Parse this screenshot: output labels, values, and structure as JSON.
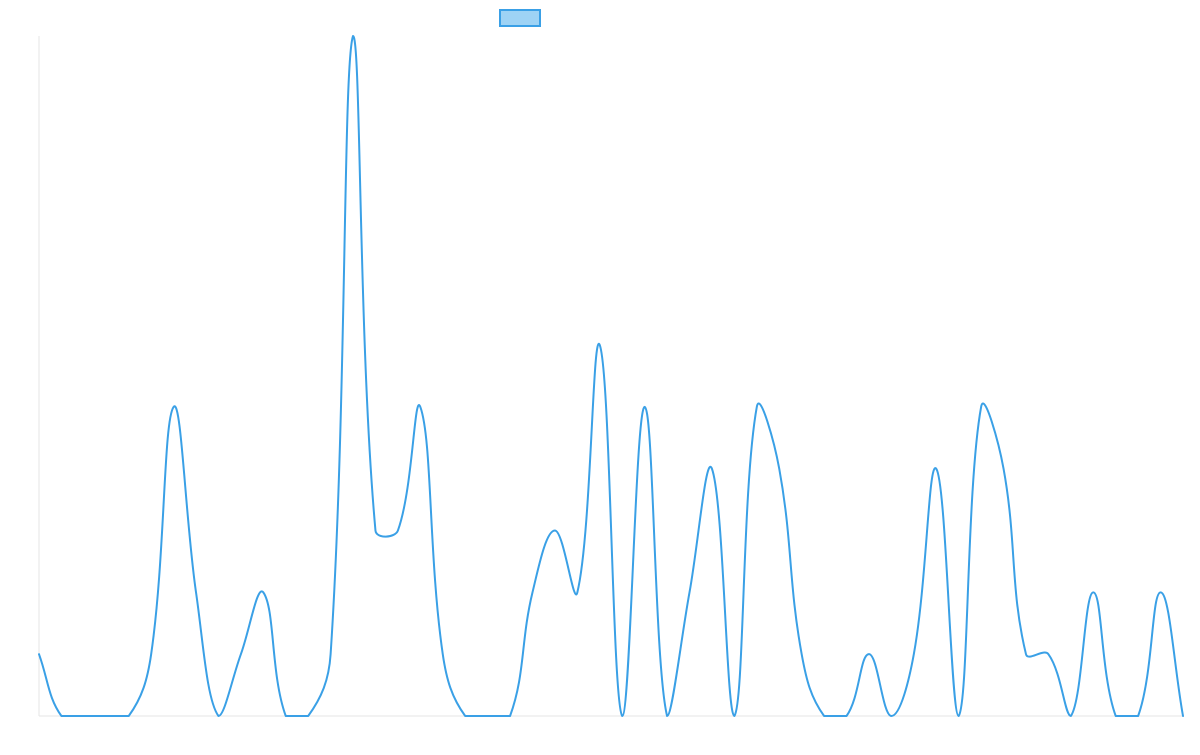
{
  "chart_data": {
    "type": "line",
    "title": "",
    "xlabel": "",
    "ylabel": "",
    "legend": {
      "position": "top-center",
      "swatch_fill": "#9ed3f5",
      "swatch_stroke": "#3aa0e6"
    },
    "axes_visible": false,
    "grid": false,
    "line_color": "#3aa0e6",
    "line_tension": 0.4,
    "x": [
      0,
      1,
      2,
      3,
      4,
      5,
      6,
      7,
      8,
      9,
      10,
      11,
      12,
      13,
      14,
      15,
      16,
      17,
      18,
      19,
      20,
      21,
      22,
      23,
      24,
      25,
      26,
      27,
      28,
      29,
      30,
      31,
      32,
      33,
      34,
      35,
      36,
      37,
      38,
      39,
      40,
      41,
      42,
      43,
      44,
      45,
      46,
      47,
      48,
      49,
      50,
      51
    ],
    "series": [
      {
        "values": [
          1,
          0,
          0,
          0,
          0,
          1,
          5,
          2,
          0,
          1,
          2,
          0,
          0,
          1,
          11,
          3,
          3,
          5,
          1,
          0,
          0,
          0,
          2,
          3,
          2,
          6,
          0,
          5,
          0,
          2,
          4,
          0,
          5,
          4,
          1,
          0,
          0,
          1,
          0,
          1,
          4,
          0,
          5,
          4,
          1,
          1,
          0,
          2,
          0,
          0,
          2,
          0
        ]
      }
    ],
    "ylim": [
      0,
      11
    ]
  }
}
